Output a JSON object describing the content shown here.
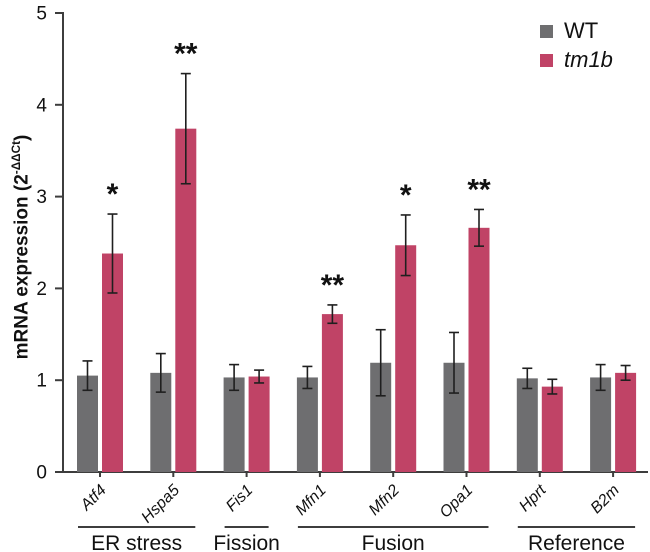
{
  "chart_data": {
    "type": "bar",
    "title": "",
    "ylabel_prefix": "mRNA expression (2",
    "ylabel_sup": "-ΔΔCt",
    "ylabel_suffix": ")",
    "ylim": [
      0,
      5
    ],
    "yticks": [
      0,
      1,
      2,
      3,
      4,
      5
    ],
    "grid": false,
    "legend_position": "top-right",
    "categories": [
      "Atf4",
      "Hspa5",
      "Fis1",
      "Mfn1",
      "Mfn2",
      "Opa1",
      "Hprt",
      "B2m"
    ],
    "groups": [
      {
        "label": "ER stress",
        "genes": [
          "Atf4",
          "Hspa5"
        ]
      },
      {
        "label": "Fission",
        "genes": [
          "Fis1"
        ]
      },
      {
        "label": "Fusion",
        "genes": [
          "Mfn1",
          "Mfn2",
          "Opa1"
        ]
      },
      {
        "label": "Reference",
        "genes": [
          "Hprt",
          "B2m"
        ]
      }
    ],
    "series": [
      {
        "name": "WT",
        "italic": false,
        "color": "#6e6e70",
        "values": [
          1.05,
          1.08,
          1.03,
          1.03,
          1.19,
          1.19,
          1.02,
          1.03
        ],
        "errors": [
          0.16,
          0.21,
          0.14,
          0.12,
          0.36,
          0.33,
          0.11,
          0.14
        ]
      },
      {
        "name": "tm1b",
        "italic": true,
        "color": "#c04366",
        "values": [
          2.38,
          3.74,
          1.04,
          1.72,
          2.47,
          2.66,
          0.93,
          1.08
        ],
        "errors": [
          0.43,
          0.6,
          0.07,
          0.1,
          0.33,
          0.2,
          0.08,
          0.08
        ]
      }
    ],
    "significance": [
      "*",
      "**",
      "",
      "**",
      "*",
      "**",
      "",
      ""
    ],
    "colors": {
      "axis": "#3d3d3d",
      "error_bar": "#1f1f1f",
      "text": "#111111"
    }
  }
}
